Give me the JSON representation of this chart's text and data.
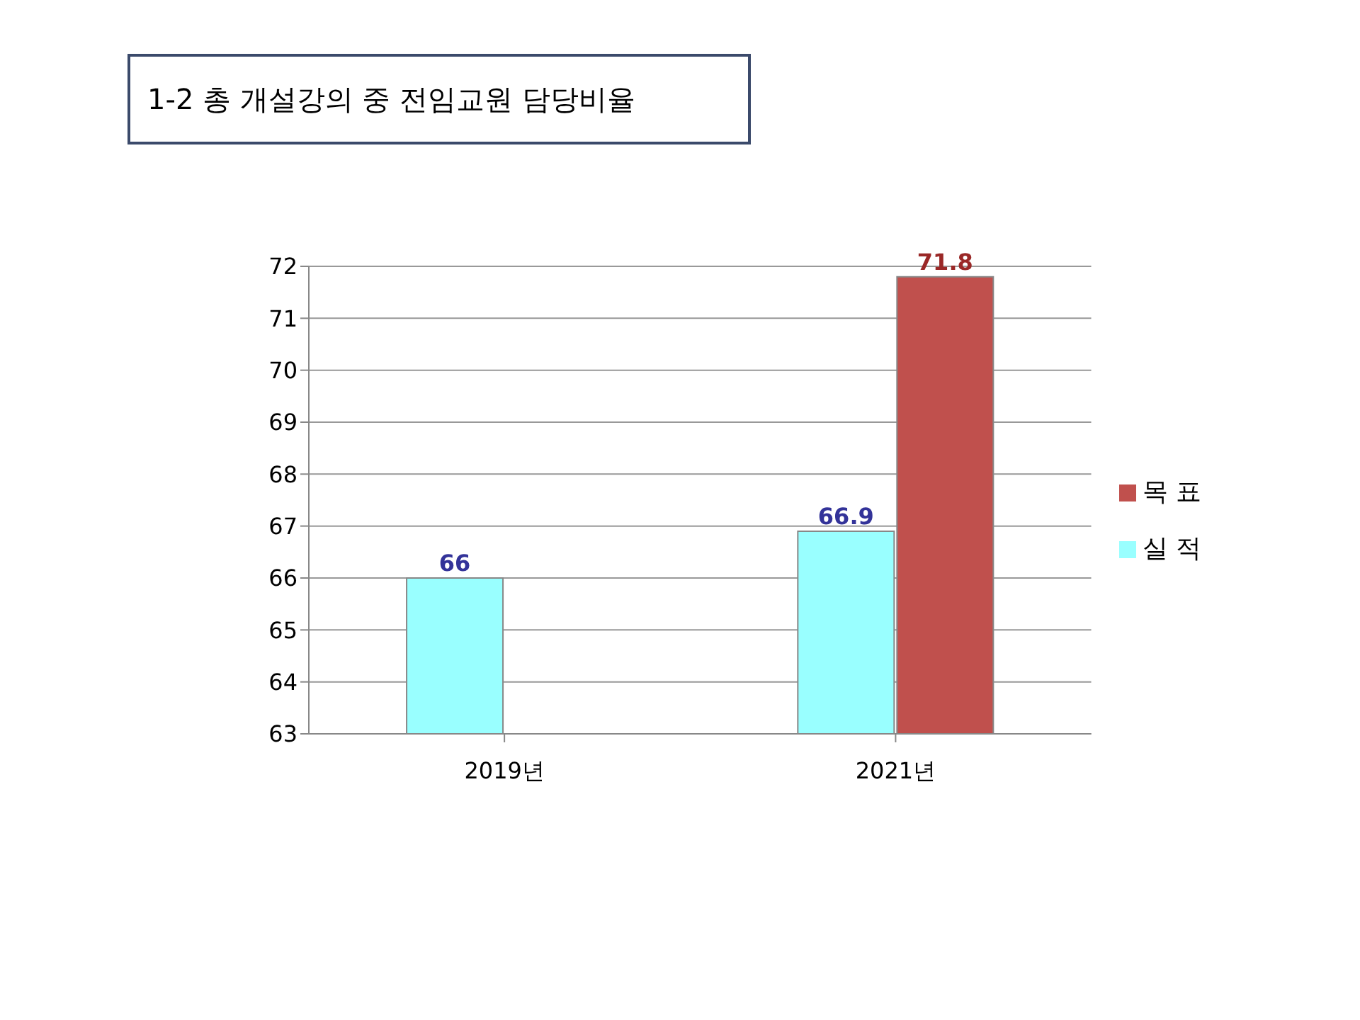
{
  "chart_data": {
    "type": "bar",
    "title": "1-2 총 개설강의 중 전임교원 담당비율",
    "categories": [
      "2019년",
      "2021년"
    ],
    "series": [
      {
        "name": "실 적",
        "color": "#99ffff",
        "values": [
          66,
          66.9
        ]
      },
      {
        "name": "목 표",
        "color": "#c0504d",
        "values": [
          null,
          71.8
        ]
      }
    ],
    "ylim": [
      63,
      72
    ],
    "yticks": [
      63,
      64,
      65,
      66,
      67,
      68,
      69,
      70,
      71,
      72
    ],
    "grid": "y",
    "legend": "right",
    "data_labels": true
  }
}
